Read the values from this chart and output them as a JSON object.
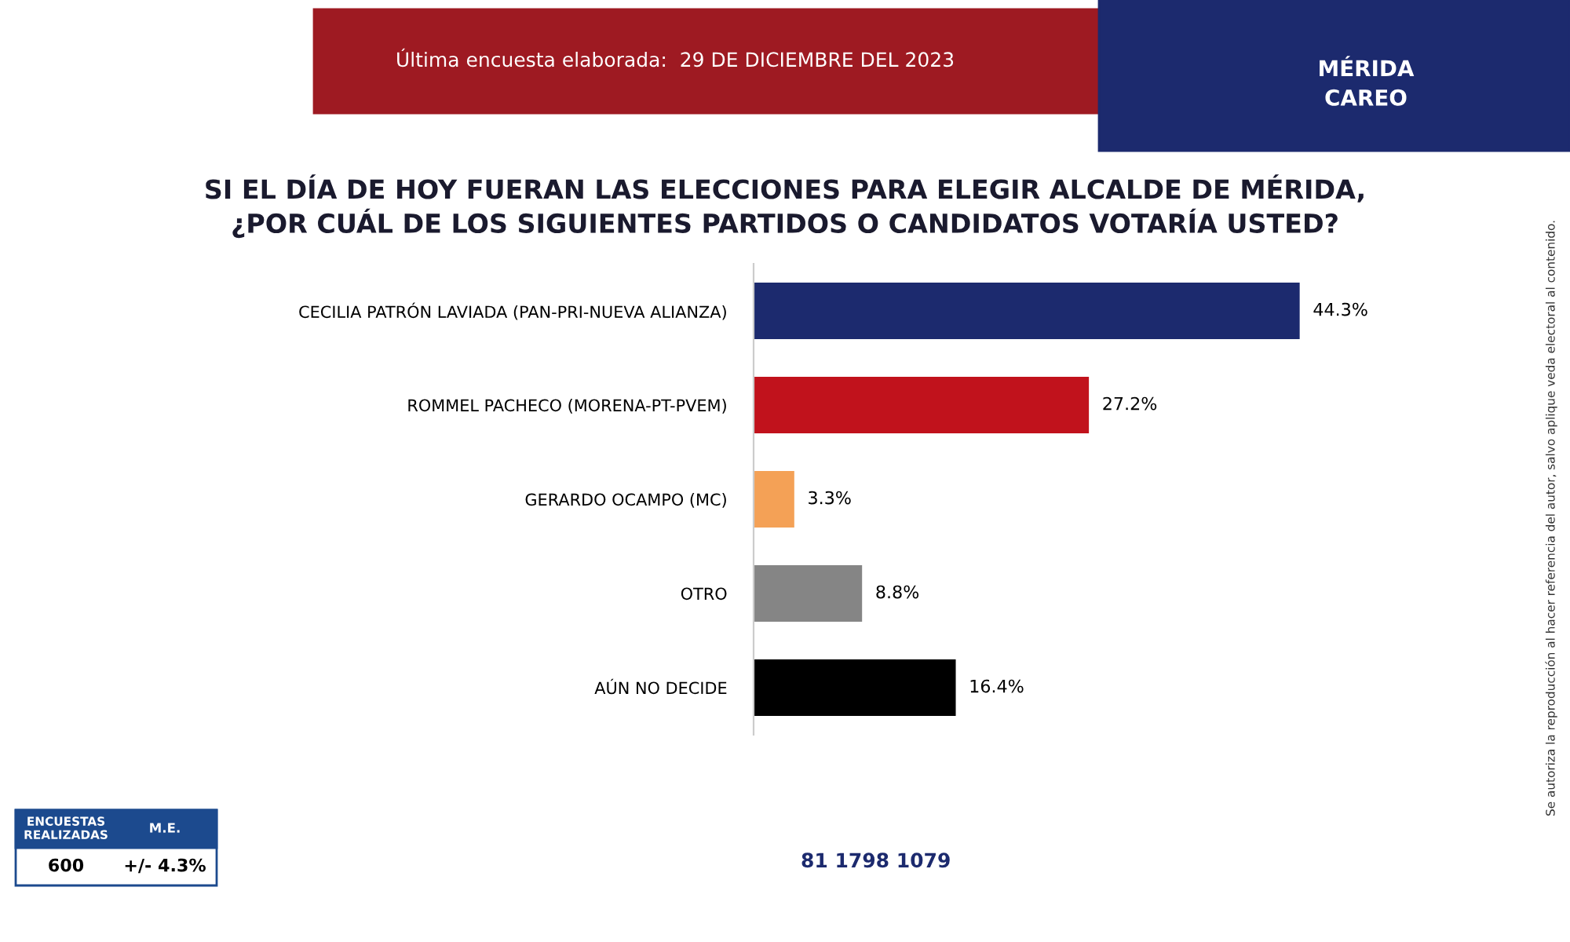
{
  "chart_data": {
    "type": "bar",
    "orientation": "horizontal",
    "title": "SI EL DÍA DE HOY FUERAN LAS ELECCIONES PARA ELEGIR ALCALDE DE MÉRIDA,\n¿POR CUÁL DE LOS SIGUIENTES PARTIDOS O CANDIDATOS VOTARÍA USTED?",
    "subtitle": "Última encuesta elaborada:  29 DE DICIEMBRE DEL 2023",
    "categories": [
      "CECILIA PATRÓN LAVIADA (PAN-PRI-NUEVA ALIANZA)",
      "ROMMEL PACHECO (MORENA-PT-PVEM)",
      "GERARDO OCAMPO (MC)",
      "OTRO",
      "AÚN NO DECIDE"
    ],
    "values": [
      44.3,
      27.2,
      3.3,
      8.8,
      16.4
    ],
    "colors": [
      "#1c2a6e",
      "#c1121c",
      "#f4a156",
      "#858585",
      "#000000"
    ],
    "value_labels": [
      "44.3%",
      "27.2%",
      "3.3%",
      "8.8%",
      "16.4%"
    ],
    "tick_labels": "y",
    "grid": false,
    "legend": false,
    "annotations": [
      "MÉRIDA\nCAREO",
      "ENCUESTAS\nREALIZADAS",
      "M.E.",
      "600",
      "+/- 4.3%",
      "81 1798 1079",
      "Se autoriza la reproducción al hacer referencia del autor, salvo aplique veda electoral al contenido."
    ]
  }
}
